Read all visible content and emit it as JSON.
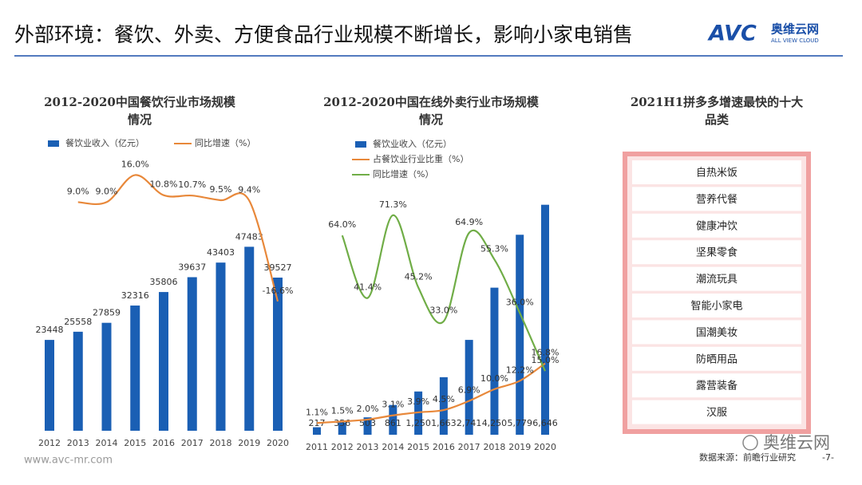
{
  "header": {
    "title": "外部环境：餐饮、外卖、方便食品行业规模不断增长，影响小家电销售",
    "logo": "AVC",
    "logo_cn": "奥维云网",
    "logo_en": "ALL VIEW CLOUD"
  },
  "chart_data": [
    {
      "type": "combo",
      "title": "2012-2020中国餐饮行业市场规模情况",
      "categories": [
        "2012",
        "2013",
        "2014",
        "2015",
        "2016",
        "2017",
        "2018",
        "2019",
        "2020"
      ],
      "ylim": [
        0,
        70000
      ],
      "y2lim": [
        -50,
        20
      ],
      "series": [
        {
          "name": "餐饮业收入（亿元）",
          "type": "bar",
          "color": "#1a5fb4",
          "values": [
            23448,
            25558,
            27859,
            32316,
            35806,
            39637,
            43403,
            47483,
            39527
          ]
        },
        {
          "name": "同比增速（%）",
          "type": "line",
          "axis": "y2",
          "color": "#e8883a",
          "values": [
            null,
            9.0,
            9.0,
            16.0,
            10.8,
            10.7,
            9.5,
            9.4,
            -16.6
          ],
          "value_labels": [
            null,
            "9.0%",
            "9.0%",
            "16.0%",
            "10.8%",
            "10.7%",
            "9.5%",
            "9.4%",
            "-16.6%"
          ]
        }
      ]
    },
    {
      "type": "combo",
      "title": "2012-2020中国在线外卖行业市场规模情况",
      "categories": [
        "2011",
        "2012",
        "2013",
        "2014",
        "2015",
        "2016",
        "2017",
        "2018",
        "2019",
        "2020"
      ],
      "ylim": [
        0,
        6800
      ],
      "y2lim": [
        -8,
        77
      ],
      "y3lim": [
        -2,
        60
      ],
      "series": [
        {
          "name": "餐饮业收入（亿元）",
          "type": "bar",
          "color": "#1a5fb4",
          "values": [
            217,
            356,
            503,
            861,
            1250,
            1663,
            2741,
            4250,
            5779,
            6646
          ],
          "value_labels": [
            "217",
            "356",
            "503",
            "861",
            "1,250",
            "1,663",
            "2,741",
            "4,250",
            "5,779",
            "6,646"
          ]
        },
        {
          "name": "占餐饮业行业比重（%）",
          "type": "line",
          "axis": "y3",
          "color": "#e8883a",
          "values": [
            1.1,
            1.5,
            2.0,
            3.1,
            3.9,
            4.5,
            6.9,
            10.0,
            12.2,
            16.8
          ],
          "value_labels": [
            "1.1%",
            "1.5%",
            "2.0%",
            "3.1%",
            "3.9%",
            "4.5%",
            "6.9%",
            "10.0%",
            "12.2%",
            "16.8%"
          ]
        },
        {
          "name": "同比增速（%）",
          "type": "line",
          "axis": "y2",
          "color": "#70ad47",
          "values": [
            null,
            64.0,
            41.4,
            71.3,
            45.2,
            33.0,
            64.9,
            55.3,
            36.0,
            15.0
          ],
          "value_labels": [
            null,
            "64.0%",
            "41.4%",
            "71.3%",
            "45.2%",
            "33.0%",
            "64.9%",
            "55.3%",
            "36.0%",
            "15.0%"
          ]
        }
      ]
    }
  ],
  "list": {
    "title": "2021H1拼多多增速最快的十大品类",
    "items": [
      "自热米饭",
      "营养代餐",
      "健康冲饮",
      "坚果零食",
      "潮流玩具",
      "智能小家电",
      "国潮美妆",
      "防晒用品",
      "露营装备",
      "汉服"
    ]
  },
  "footer": {
    "website": "www.avc-mr.com",
    "source": "数据来源：前瞻行业研究",
    "page": "-7-",
    "watermark": "奥维云网"
  }
}
